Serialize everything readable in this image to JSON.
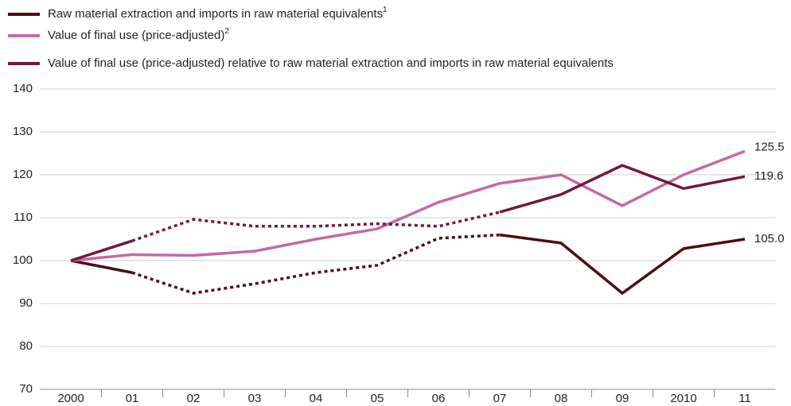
{
  "chart_data": {
    "type": "line",
    "categories": [
      "2000",
      "01",
      "02",
      "03",
      "04",
      "05",
      "06",
      "07",
      "08",
      "09",
      "2010",
      "11"
    ],
    "series": [
      {
        "name": "Raw material extraction and imports in raw material equivalents",
        "footnote": "1",
        "color": "#4b0e16",
        "values": [
          100,
          97.2,
          92.4,
          94.6,
          97.2,
          98.9,
          105.2,
          106.0,
          104.1,
          92.4,
          102.8,
          105.0
        ],
        "value_labels": [
          null,
          null,
          null,
          null,
          null,
          null,
          null,
          null,
          null,
          null,
          null,
          "105.0"
        ],
        "dash_between": [
          "01",
          "07"
        ]
      },
      {
        "name": "Value of final use (price-adjusted)",
        "footnote": "2",
        "color": "#c26aa3",
        "values": [
          100,
          101.4,
          101.2,
          102.2,
          105.0,
          107.4,
          113.6,
          118.0,
          120.0,
          112.8,
          120.0,
          125.5
        ]
      },
      {
        "name": "Value of final use (price-adjusted) relative to raw material extraction and imports in raw material equivalents",
        "color": "#72173f",
        "values": [
          100,
          104.6,
          109.6,
          108.0,
          108.0,
          108.6,
          108.0,
          111.3,
          115.4,
          122.2,
          116.8,
          119.6
        ],
        "dash_between": [
          "01",
          "07"
        ]
      }
    ],
    "end_labels": true,
    "ylim": [
      70,
      140
    ],
    "yticks": [
      70,
      80,
      90,
      100,
      110,
      120,
      130,
      140
    ],
    "grid": true,
    "legend": "top-left"
  }
}
